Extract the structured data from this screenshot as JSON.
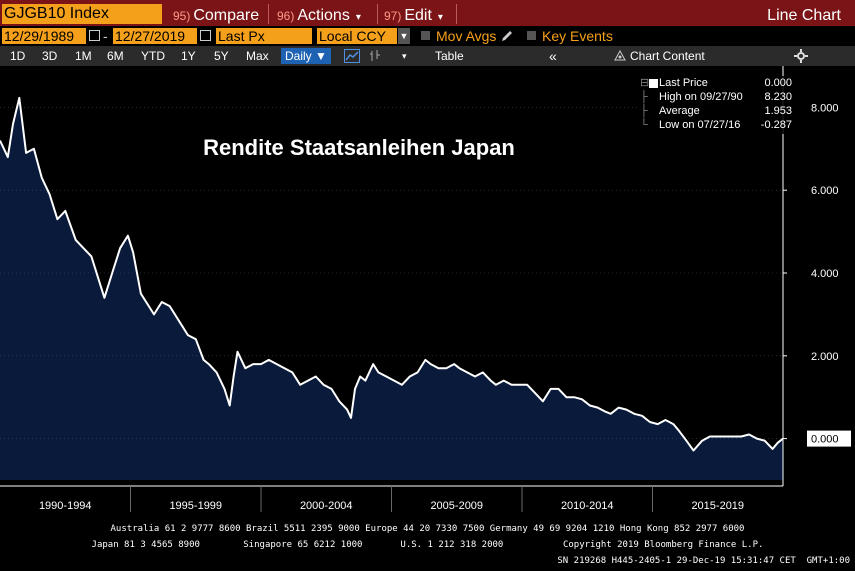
{
  "toolbar": {
    "ticker": "GJGB10 Index",
    "compare_num": "95)",
    "compare": "Compare",
    "actions_num": "96)",
    "actions": "Actions",
    "edit_num": "97)",
    "edit": "Edit",
    "chart_type": "Line Chart"
  },
  "options": {
    "start_date": "12/29/1989",
    "end_date": "12/27/2019",
    "field": "Last Px",
    "currency": "Local CCY",
    "mov_avgs": "Mov Avgs",
    "key_events": "Key Events"
  },
  "ranges": {
    "r1d": "1D",
    "r3d": "3D",
    "r1m": "1M",
    "r6m": "6M",
    "rytd": "YTD",
    "r1y": "1Y",
    "r5y": "5Y",
    "rmax": "Max",
    "frequency": "Daily ▼",
    "table": "Table",
    "collapse": "«",
    "chart_content": "Chart Content"
  },
  "legend": {
    "last_label": "Last Price",
    "last_value": "0.000",
    "high_label": "High on 09/27/90",
    "high_value": "8.230",
    "avg_label": "Average",
    "avg_value": "1.953",
    "low_label": "Low on 07/27/16",
    "low_value": "-0.287"
  },
  "footer": {
    "line1": "Australia 61 2 9777 8600 Brazil 5511 2395 9000 Europe 44 20 7330 7500 Germany 49 69 9204 1210 Hong Kong 852 2977 6000",
    "line2": "Japan 81 3 4565 8900        Singapore 65 6212 1000       U.S. 1 212 318 2000           Copyright 2019 Bloomberg Finance L.P.",
    "line3": "SN 219268 H445-2405-1 29-Dec-19 15:31:47 CET  GMT+1:00"
  },
  "colors": {
    "area_fill": "#0a1a3a",
    "line": "#ffffff",
    "ticker_bg": "#f5a01a",
    "header_bg": "#7a1416",
    "active_tab": "#1e62b3"
  },
  "chart_data": {
    "type": "area",
    "title": "Rendite Staatsanleihen Japan",
    "y_ticks": [
      "8.000",
      "6.000",
      "4.000",
      "2.000",
      "0.000"
    ],
    "ylim": [
      -1.0,
      9.0
    ],
    "last_value_label": "0.000",
    "x_categories": [
      "1990-1994",
      "1995-1999",
      "2000-2004",
      "2005-2009",
      "2010-2014",
      "2015-2019"
    ],
    "xlim": [
      1990.0,
      2020.0
    ],
    "series": [
      {
        "name": "Last Price",
        "x": [
          1990.0,
          1990.3,
          1990.5,
          1990.74,
          1991.0,
          1991.3,
          1991.6,
          1991.9,
          1992.2,
          1992.5,
          1992.9,
          1993.2,
          1993.5,
          1993.8,
          1994.0,
          1994.3,
          1994.6,
          1994.9,
          1995.1,
          1995.4,
          1995.7,
          1995.9,
          1996.2,
          1996.5,
          1996.9,
          1997.2,
          1997.5,
          1997.8,
          1998.0,
          1998.3,
          1998.6,
          1998.8,
          1998.95,
          1999.1,
          1999.4,
          1999.7,
          2000.0,
          2000.3,
          2000.6,
          2000.9,
          2001.2,
          2001.5,
          2001.8,
          2002.1,
          2002.4,
          2002.7,
          2003.0,
          2003.3,
          2003.45,
          2003.6,
          2003.8,
          2004.0,
          2004.3,
          2004.5,
          2004.8,
          2005.1,
          2005.4,
          2005.7,
          2006.0,
          2006.3,
          2006.5,
          2006.8,
          2007.1,
          2007.4,
          2007.6,
          2007.9,
          2008.2,
          2008.5,
          2008.8,
          2009.0,
          2009.3,
          2009.6,
          2009.9,
          2010.2,
          2010.5,
          2010.8,
          2011.1,
          2011.4,
          2011.7,
          2012.0,
          2012.3,
          2012.6,
          2012.9,
          2013.2,
          2013.4,
          2013.7,
          2014.0,
          2014.3,
          2014.6,
          2014.9,
          2015.2,
          2015.5,
          2015.8,
          2016.0,
          2016.3,
          2016.57,
          2016.9,
          2017.2,
          2017.5,
          2017.8,
          2018.1,
          2018.4,
          2018.7,
          2019.0,
          2019.3,
          2019.6,
          2019.8,
          2020.0
        ],
        "y": [
          7.2,
          6.8,
          7.6,
          8.23,
          6.9,
          7.0,
          6.3,
          5.9,
          5.3,
          5.5,
          4.8,
          4.6,
          4.4,
          3.8,
          3.4,
          4.0,
          4.6,
          4.9,
          4.5,
          3.5,
          3.2,
          3.0,
          3.3,
          3.2,
          2.8,
          2.5,
          2.4,
          1.9,
          1.8,
          1.6,
          1.2,
          0.8,
          1.5,
          2.1,
          1.7,
          1.8,
          1.8,
          1.9,
          1.8,
          1.7,
          1.6,
          1.3,
          1.4,
          1.5,
          1.3,
          1.2,
          0.9,
          0.7,
          0.5,
          1.2,
          1.5,
          1.4,
          1.8,
          1.6,
          1.5,
          1.4,
          1.3,
          1.5,
          1.6,
          1.9,
          1.8,
          1.7,
          1.7,
          1.8,
          1.7,
          1.6,
          1.5,
          1.6,
          1.4,
          1.3,
          1.4,
          1.3,
          1.3,
          1.3,
          1.1,
          0.9,
          1.2,
          1.2,
          1.0,
          1.0,
          0.95,
          0.8,
          0.75,
          0.65,
          0.6,
          0.75,
          0.7,
          0.6,
          0.55,
          0.4,
          0.35,
          0.45,
          0.35,
          0.2,
          -0.05,
          -0.287,
          -0.05,
          0.05,
          0.05,
          0.05,
          0.05,
          0.05,
          0.1,
          0.0,
          -0.05,
          -0.25,
          -0.1,
          0.0
        ]
      }
    ]
  }
}
